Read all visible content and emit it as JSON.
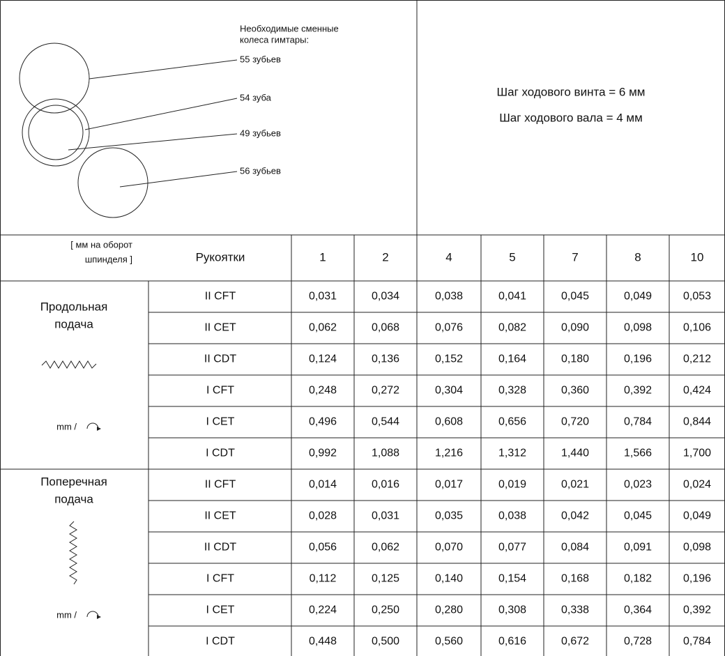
{
  "gears": {
    "title": [
      "Необходимые сменные",
      "колеса гимтары:"
    ],
    "labels": [
      "55 зубьев",
      "54 зуба",
      "49 зубьев",
      "56 зубьев"
    ]
  },
  "pitch": [
    "Шаг ходового винта = 6 мм",
    "Шаг ходового вала = 4 мм"
  ],
  "table": {
    "corner": [
      "[ мм на оборот",
      "шпинделя ]"
    ],
    "handle_header": "Рукоятки",
    "columns": [
      "1",
      "2",
      "4",
      "5",
      "7",
      "8",
      "10"
    ],
    "sections": [
      {
        "label": [
          "Продольная",
          "подача"
        ],
        "unit": "mm /",
        "rows": [
          {
            "handle": "II CFT",
            "values": [
              "0,031",
              "0,034",
              "0,038",
              "0,041",
              "0,045",
              "0,049",
              "0,053"
            ]
          },
          {
            "handle": "II CET",
            "values": [
              "0,062",
              "0,068",
              "0,076",
              "0,082",
              "0,090",
              "0,098",
              "0,106"
            ]
          },
          {
            "handle": "II CDT",
            "values": [
              "0,124",
              "0,136",
              "0,152",
              "0,164",
              "0,180",
              "0,196",
              "0,212"
            ]
          },
          {
            "handle": "I CFT",
            "values": [
              "0,248",
              "0,272",
              "0,304",
              "0,328",
              "0,360",
              "0,392",
              "0,424"
            ]
          },
          {
            "handle": "I CET",
            "values": [
              "0,496",
              "0,544",
              "0,608",
              "0,656",
              "0,720",
              "0,784",
              "0,844"
            ]
          },
          {
            "handle": "I CDT",
            "values": [
              "0,992",
              "1,088",
              "1,216",
              "1,312",
              "1,440",
              "1,566",
              "1,700"
            ]
          }
        ]
      },
      {
        "label": [
          "Поперечная",
          "подача"
        ],
        "unit": "mm /",
        "rows": [
          {
            "handle": "II CFT",
            "values": [
              "0,014",
              "0,016",
              "0,017",
              "0,019",
              "0,021",
              "0,023",
              "0,024"
            ]
          },
          {
            "handle": "II CET",
            "values": [
              "0,028",
              "0,031",
              "0,035",
              "0,038",
              "0,042",
              "0,045",
              "0,049"
            ]
          },
          {
            "handle": "II CDT",
            "values": [
              "0,056",
              "0,062",
              "0,070",
              "0,077",
              "0,084",
              "0,091",
              "0,098"
            ]
          },
          {
            "handle": "I CFT",
            "values": [
              "0,112",
              "0,125",
              "0,140",
              "0,154",
              "0,168",
              "0,182",
              "0,196"
            ]
          },
          {
            "handle": "I CET",
            "values": [
              "0,224",
              "0,250",
              "0,280",
              "0,308",
              "0,338",
              "0,364",
              "0,392"
            ]
          },
          {
            "handle": "I CDT",
            "values": [
              "0,448",
              "0,500",
              "0,560",
              "0,616",
              "0,672",
              "0,728",
              "0,784"
            ]
          }
        ]
      }
    ]
  }
}
